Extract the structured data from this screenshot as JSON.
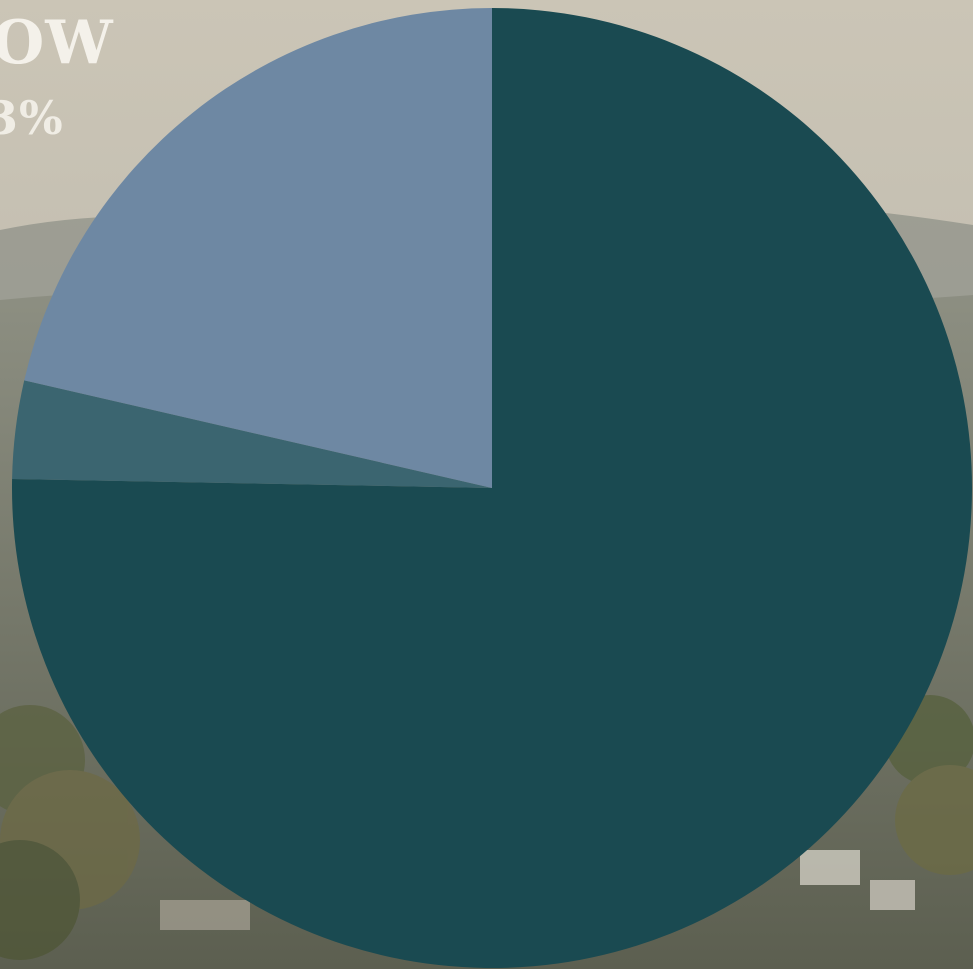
{
  "overlay": {
    "line1": "OW",
    "line2": "3%"
  },
  "colors": {
    "slice_dark": "#1a4a51",
    "slice_mid": "#3b6570",
    "slice_light": "#6e88a3"
  },
  "chart_data": {
    "type": "pie",
    "title": "",
    "slices": [
      {
        "value": 75.3,
        "color": "#1a4a51"
      },
      {
        "value": 3.3,
        "color": "#3b6570"
      },
      {
        "value": 21.4,
        "color": "#6e88a3"
      }
    ]
  }
}
